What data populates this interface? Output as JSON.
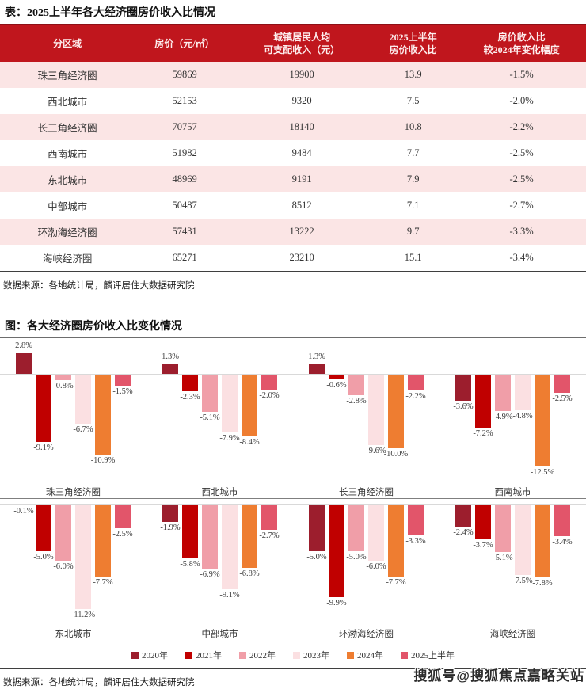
{
  "table": {
    "title": "表：2025上半年各大经济圈房价收入比情况",
    "columns": [
      "分区域",
      "房价（元/㎡）",
      "城镇居民人均\n可支配收入（元）",
      "2025上半年\n房价收入比",
      "房价收入比\n较2024年变化幅度"
    ],
    "rows": [
      [
        "珠三角经济圈",
        "59869",
        "19900",
        "13.9",
        "-1.5%"
      ],
      [
        "西北城市",
        "52153",
        "9320",
        "7.5",
        "-2.0%"
      ],
      [
        "长三角经济圈",
        "70757",
        "18140",
        "10.8",
        "-2.2%"
      ],
      [
        "西南城市",
        "51982",
        "9484",
        "7.7",
        "-2.5%"
      ],
      [
        "东北城市",
        "48969",
        "9191",
        "7.9",
        "-2.5%"
      ],
      [
        "中部城市",
        "50487",
        "8512",
        "7.1",
        "-2.7%"
      ],
      [
        "环渤海经济圈",
        "57431",
        "13222",
        "9.7",
        "-3.3%"
      ],
      [
        "海峡经济圈",
        "65271",
        "23210",
        "15.1",
        "-3.4%"
      ]
    ],
    "source": "数据来源：各地统计局，麟评居住大数据研究院"
  },
  "chart_section": {
    "title": "图：各大经济圈房价收入比变化情况",
    "source": "数据来源：各地统计局，麟评居住大数据研究院"
  },
  "chart_data": {
    "type": "bar",
    "title": "图：各大经济圈房价收入比变化情况",
    "unit": "%",
    "value_labels": true,
    "axis": "hidden",
    "legend_position": "bottom",
    "legend": [
      "2020年",
      "2021年",
      "2022年",
      "2023年",
      "2024年",
      "2025上半年"
    ],
    "colors": [
      "#9C1E2D",
      "#C00000",
      "#F09EA8",
      "#FBE0E2",
      "#EE7D31",
      "#E2556A"
    ],
    "charts": [
      {
        "category": "珠三角经济圈",
        "values": [
          2.8,
          -9.1,
          -0.8,
          -6.7,
          -10.9,
          -1.5
        ]
      },
      {
        "category": "西北城市",
        "values": [
          1.3,
          -2.3,
          -5.1,
          -7.9,
          -8.4,
          -2.0
        ]
      },
      {
        "category": "长三角经济圈",
        "values": [
          1.3,
          -0.6,
          -2.8,
          -9.6,
          -10.0,
          -2.2
        ]
      },
      {
        "category": "西南城市",
        "values": [
          -3.6,
          -7.2,
          -4.9,
          -4.8,
          -12.5,
          -2.5
        ]
      },
      {
        "category": "东北城市",
        "values": [
          -0.1,
          -5.0,
          -6.0,
          -11.2,
          -7.7,
          -2.5
        ]
      },
      {
        "category": "中部城市",
        "values": [
          -1.9,
          -5.8,
          -6.9,
          -9.1,
          -6.8,
          -2.7
        ]
      },
      {
        "category": "环渤海经济圈",
        "values": [
          -5.0,
          -9.9,
          -5.0,
          -6.0,
          -7.7,
          -3.3
        ]
      },
      {
        "category": "海峡经济圈",
        "values": [
          -2.4,
          -3.7,
          -5.1,
          -7.5,
          -7.8,
          -3.4
        ]
      }
    ]
  },
  "watermark": "搜狐号@搜狐焦点嘉略关站"
}
